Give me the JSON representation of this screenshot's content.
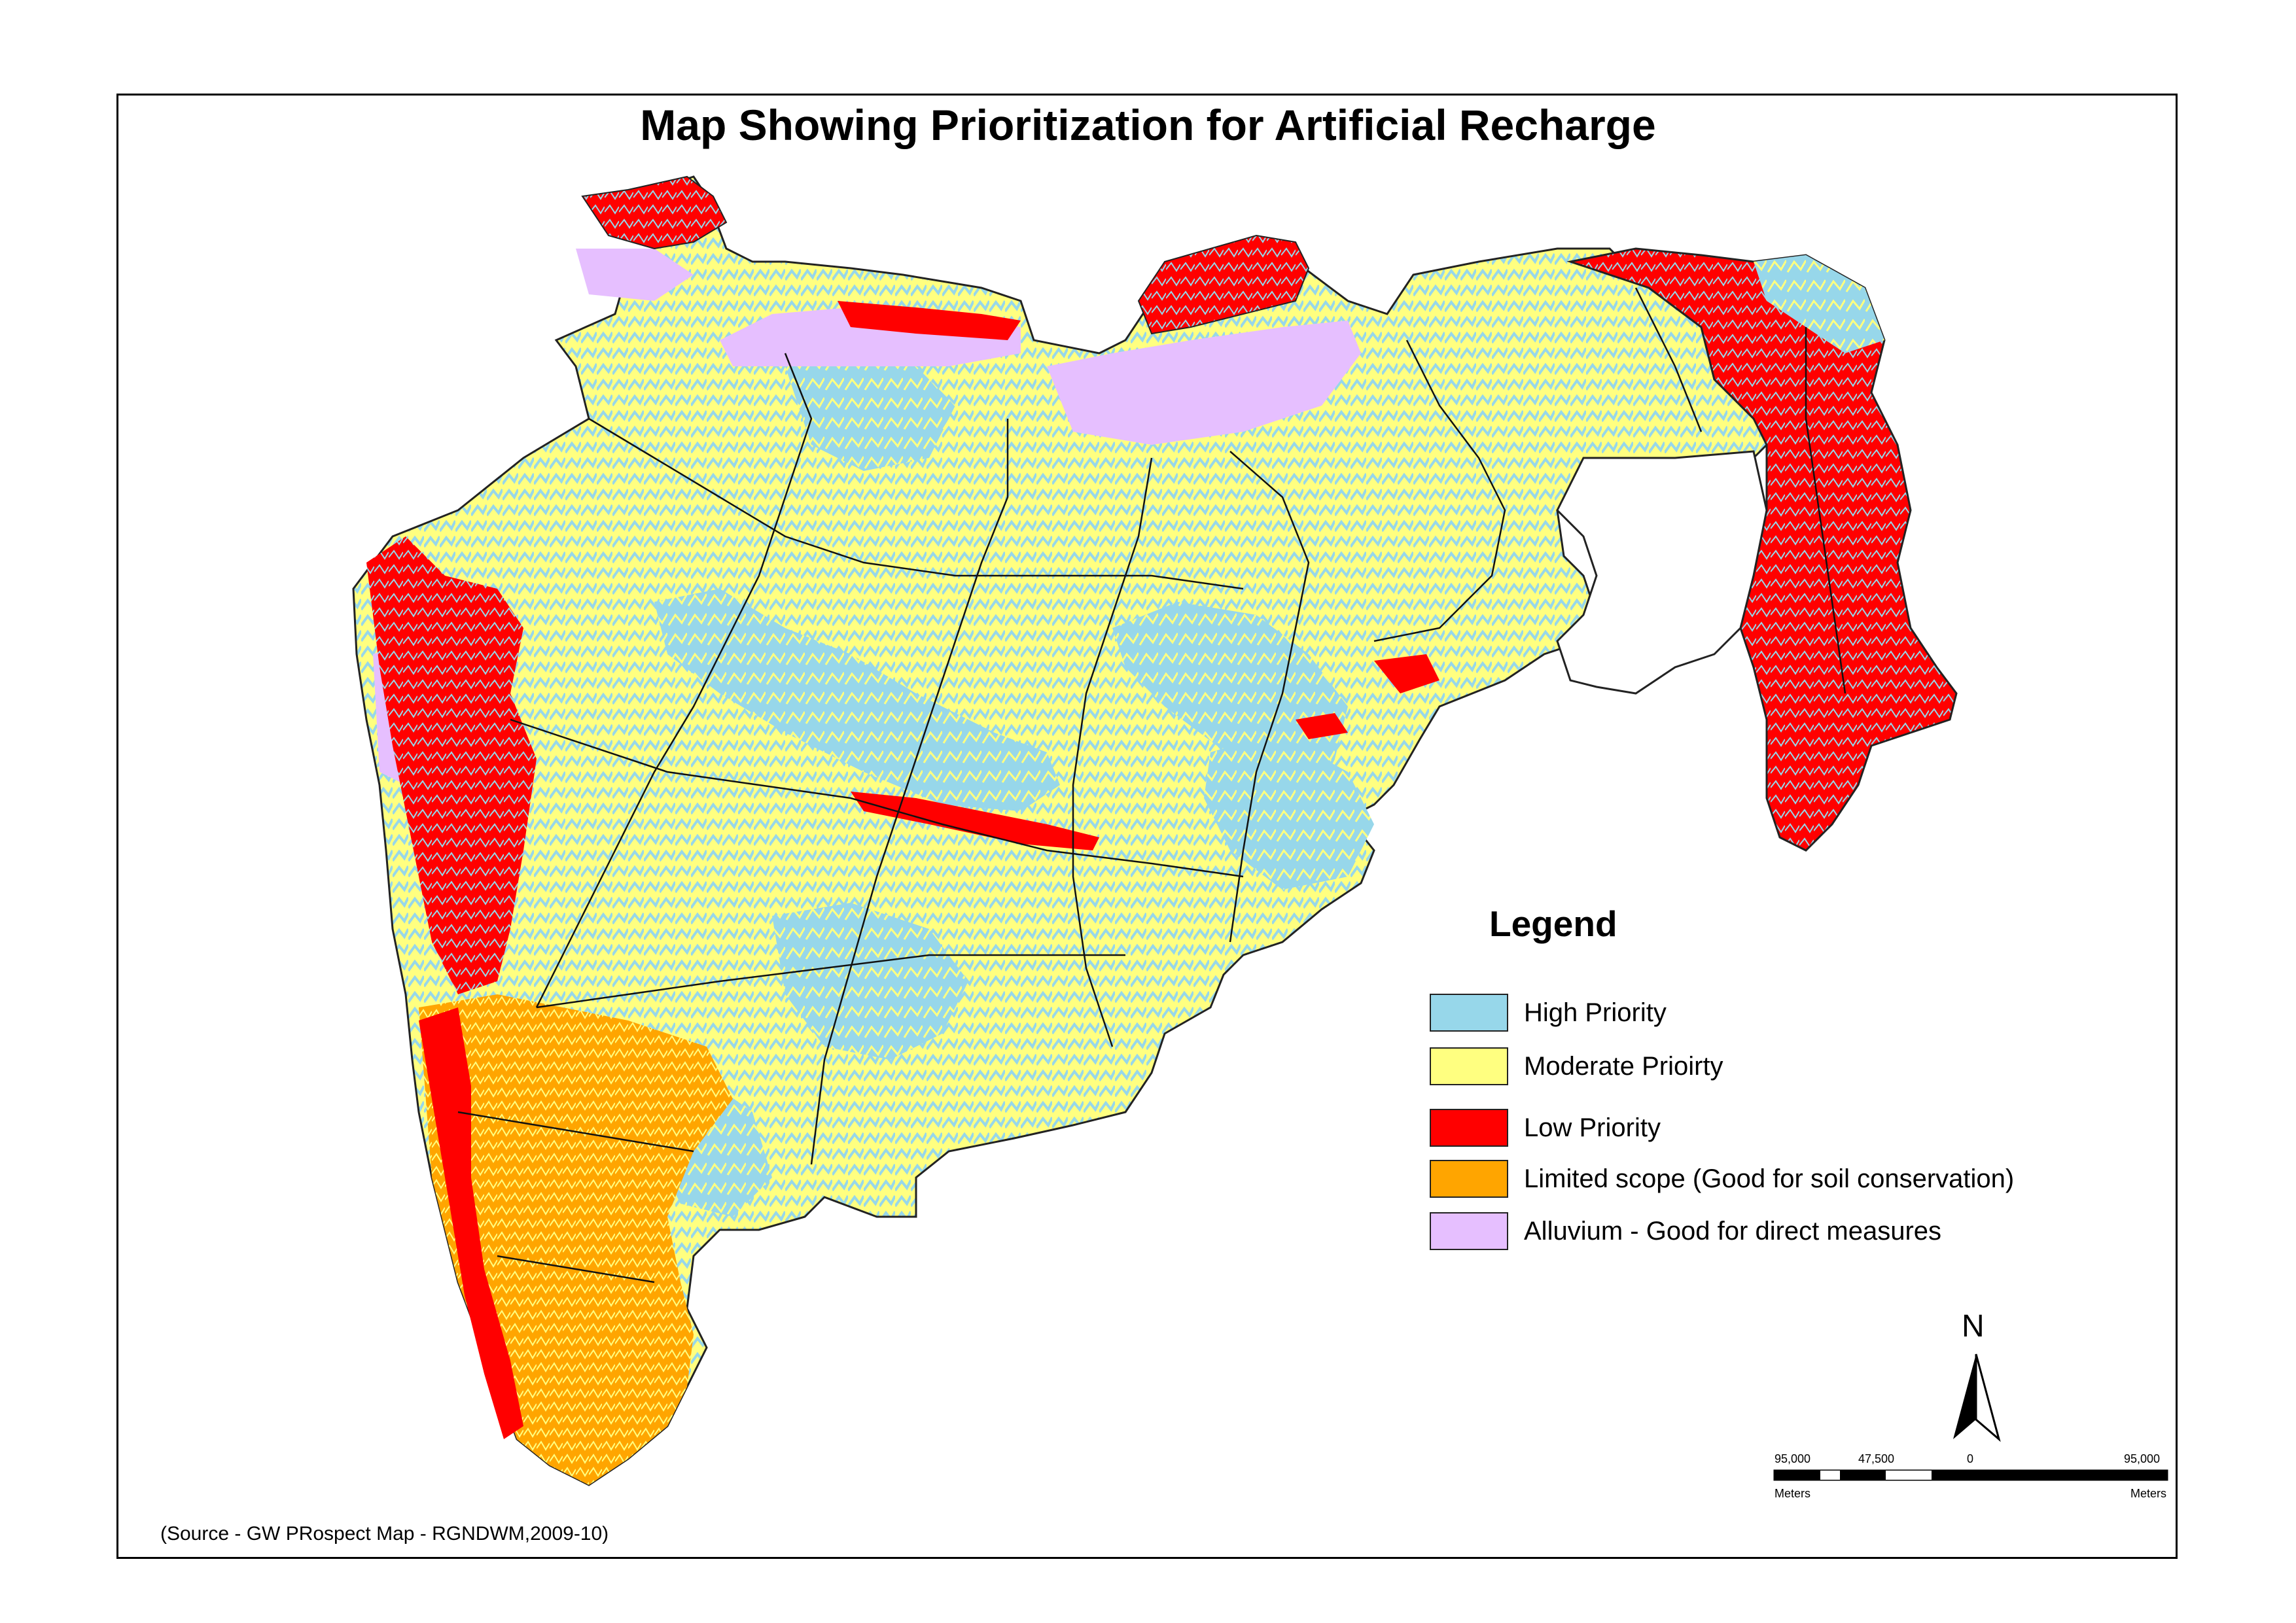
{
  "title": "Map Showing Prioritization for Artificial Recharge",
  "legend": {
    "title": "Legend",
    "items": [
      {
        "label": "High Priority",
        "color": "#97d7ea"
      },
      {
        "label": "Moderate Prioirty",
        "color": "#ffff80"
      },
      {
        "label": "Low Priority",
        "color": "#ff0000"
      },
      {
        "label": "Limited scope (Good for soil conservation)",
        "color": "#ffa500"
      },
      {
        "label": "Alluvium - Good for direct measures",
        "color": "#e6bfff"
      }
    ]
  },
  "north_arrow": {
    "label": "N",
    "icon": "north-arrow-icon"
  },
  "scale_bar": {
    "ticks": [
      "95,000",
      "47,500",
      "0",
      "95,000"
    ],
    "unit_left": "Meters",
    "unit_right": "Meters"
  },
  "source": "(Source - GW PRospect Map - RGNDWM,2009-10)"
}
